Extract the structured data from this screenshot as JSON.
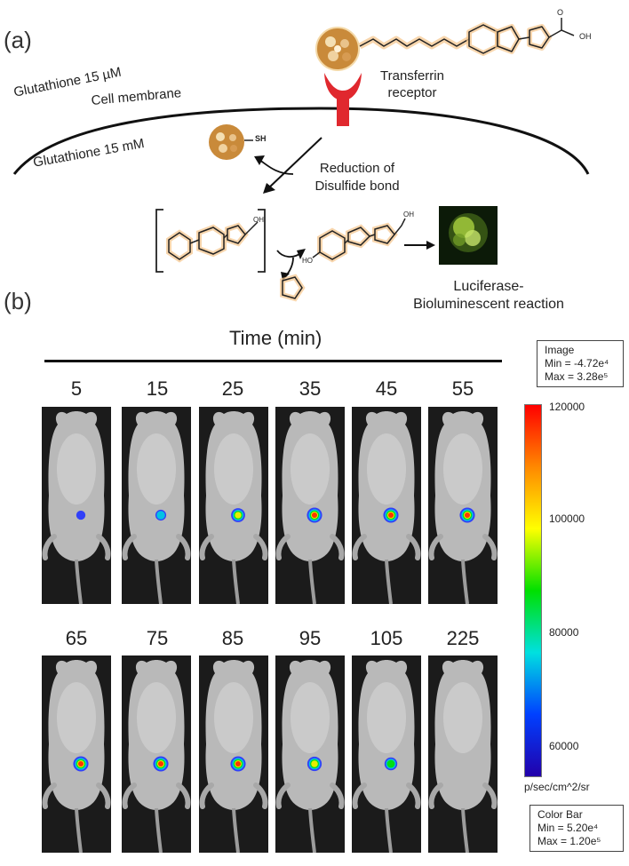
{
  "panel_a": {
    "label": "(a)",
    "glutathione_outside": "Glutathione  15 µM",
    "cell_membrane": "Cell membrane",
    "glutathione_inside": "Glutathione  15 mM",
    "transferrin_receptor_line1": "Transferrin",
    "transferrin_receptor_line2": "receptor",
    "reduction_line1": "Reduction of",
    "reduction_line2": "Disulfide bond",
    "thiol_label": "SH",
    "luciferase_line1": "Luciferase-",
    "luciferase_line2": "Bioluminescent  reaction"
  },
  "panel_b": {
    "label": "(b)",
    "time_title": "Time (min)",
    "row1_times": [
      "5",
      "15",
      "25",
      "35",
      "45",
      "55"
    ],
    "row2_times": [
      "65",
      "75",
      "85",
      "95",
      "105",
      "225"
    ],
    "signal_levels_row1": [
      0.15,
      0.35,
      0.75,
      0.9,
      0.9,
      0.9
    ],
    "signal_levels_row2": [
      0.9,
      0.9,
      0.9,
      0.8,
      0.6,
      0.0
    ]
  },
  "image_box": {
    "title": "Image",
    "min": "Min = -4.72e⁴",
    "max": "Max = 3.28e⁵"
  },
  "color_bar": {
    "ticks": [
      "120000",
      "100000",
      "80000",
      "60000"
    ],
    "unit": "p/sec/cm^2/sr",
    "box_title": "Color Bar",
    "box_min": "Min = 5.20e⁴",
    "box_max": "Max = 1.20e⁵",
    "colors": [
      "#ff0000",
      "#ff8800",
      "#ffff00",
      "#00e000",
      "#00e0e0",
      "#0040ff",
      "#2200aa"
    ]
  }
}
